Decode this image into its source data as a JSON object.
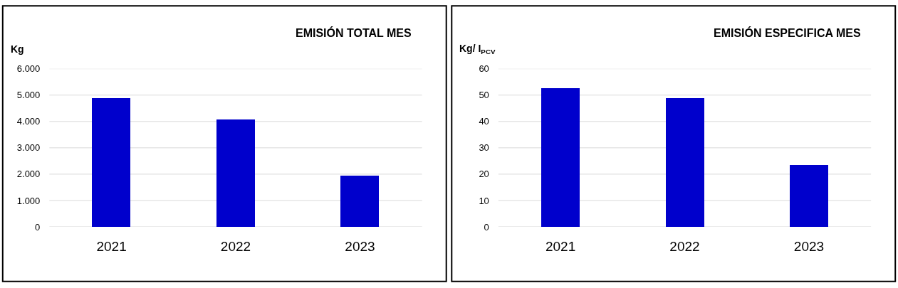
{
  "chart_data": [
    {
      "type": "bar",
      "title": "EMISIÓN TOTAL MES",
      "ylabel": "Kg",
      "categories": [
        "2021",
        "2022",
        "2023"
      ],
      "values": [
        4890,
        4090,
        1960
      ],
      "color": "#0000cc",
      "ylim": [
        0,
        6000
      ],
      "yticks": [
        0,
        {
          "value": 1000,
          "label": "1.000"
        },
        {
          "value": 2000,
          "label": "2.000"
        },
        {
          "value": 3000,
          "label": "3.000"
        },
        {
          "value": 4000,
          "label": "4.000"
        },
        {
          "value": 5000,
          "label": "5.000"
        },
        {
          "value": 6000,
          "label": "6.000"
        }
      ],
      "grid": "y"
    },
    {
      "type": "bar",
      "title": "EMISIÓN ESPECIFICA MES",
      "ylabel": "Kg/ I$_{PCV}$",
      "categories": [
        "2021",
        "2022",
        "2023"
      ],
      "values": [
        52.7,
        49.0,
        23.5
      ],
      "color": "#0000cc",
      "ylim": [
        0,
        60
      ],
      "yticks": [
        0,
        10,
        20,
        30,
        40,
        50,
        60
      ],
      "grid": "y"
    }
  ]
}
